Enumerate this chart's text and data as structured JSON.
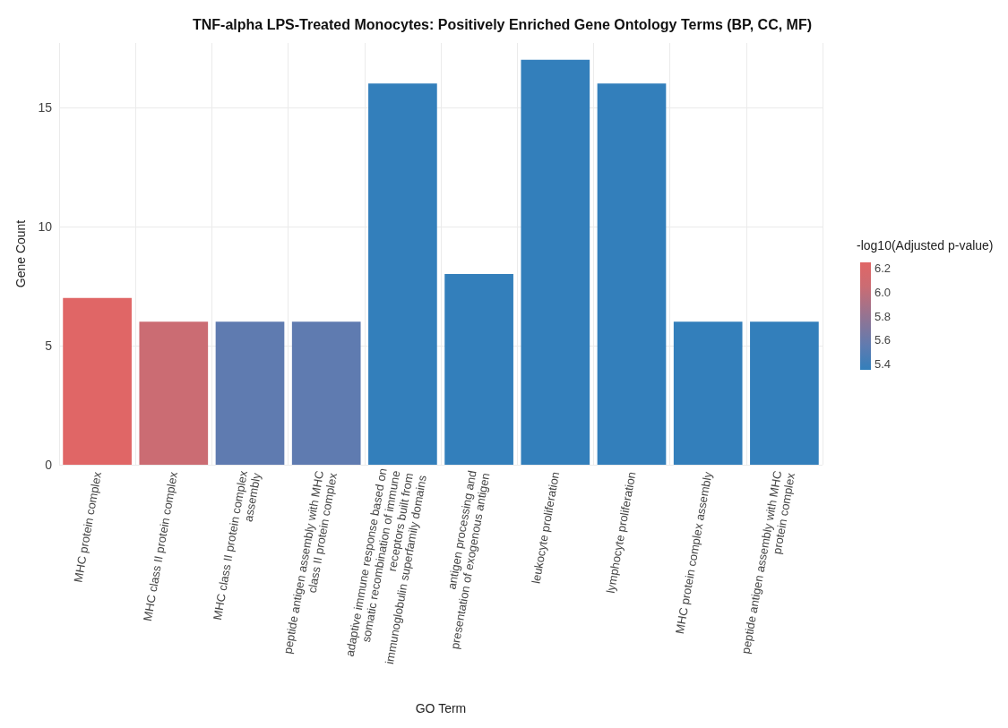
{
  "chart_data": {
    "type": "bar",
    "title": "TNF-alpha LPS-Treated Monocytes: Positively Enriched Gene Ontology Terms (BP, CC, MF)",
    "xlabel": "GO Term",
    "ylabel": "Gene Count",
    "clabel": "-log10(Adjusted p-value)",
    "categories": [
      "MHC protein complex",
      "MHC class II protein complex",
      "MHC class II protein complex assembly",
      "peptide antigen assembly with MHC class II protein complex",
      "adaptive immune response based on somatic recombination of immune receptors built from immunoglobulin superfamily domains",
      "antigen processing and presentation of exogenous antigen",
      "leukocyte proliferation",
      "lymphocyte proliferation",
      "MHC protein complex assembly",
      "peptide antigen assembly with MHC protein complex"
    ],
    "values": [
      7,
      6,
      6,
      6,
      16,
      8,
      17,
      16,
      6,
      6
    ],
    "cvalues": [
      6.25,
      6.05,
      5.55,
      5.55,
      5.35,
      5.35,
      5.35,
      5.35,
      5.35,
      5.35
    ],
    "colors": [
      "#e06666",
      "#cb6c73",
      "#5f7bb0",
      "#5f7bb0",
      "#337fbb",
      "#337fbb",
      "#337fbb",
      "#337fbb",
      "#337fbb",
      "#337fbb"
    ],
    "clim": [
      5.35,
      6.25
    ],
    "cticks": [
      5.4,
      5.6,
      5.8,
      {
        "value": 6,
        "label": "6.0"
      },
      6.2
    ],
    "ylim": [
      0,
      17.7
    ],
    "yticks": [
      0,
      5,
      10,
      15
    ],
    "grid": true
  }
}
